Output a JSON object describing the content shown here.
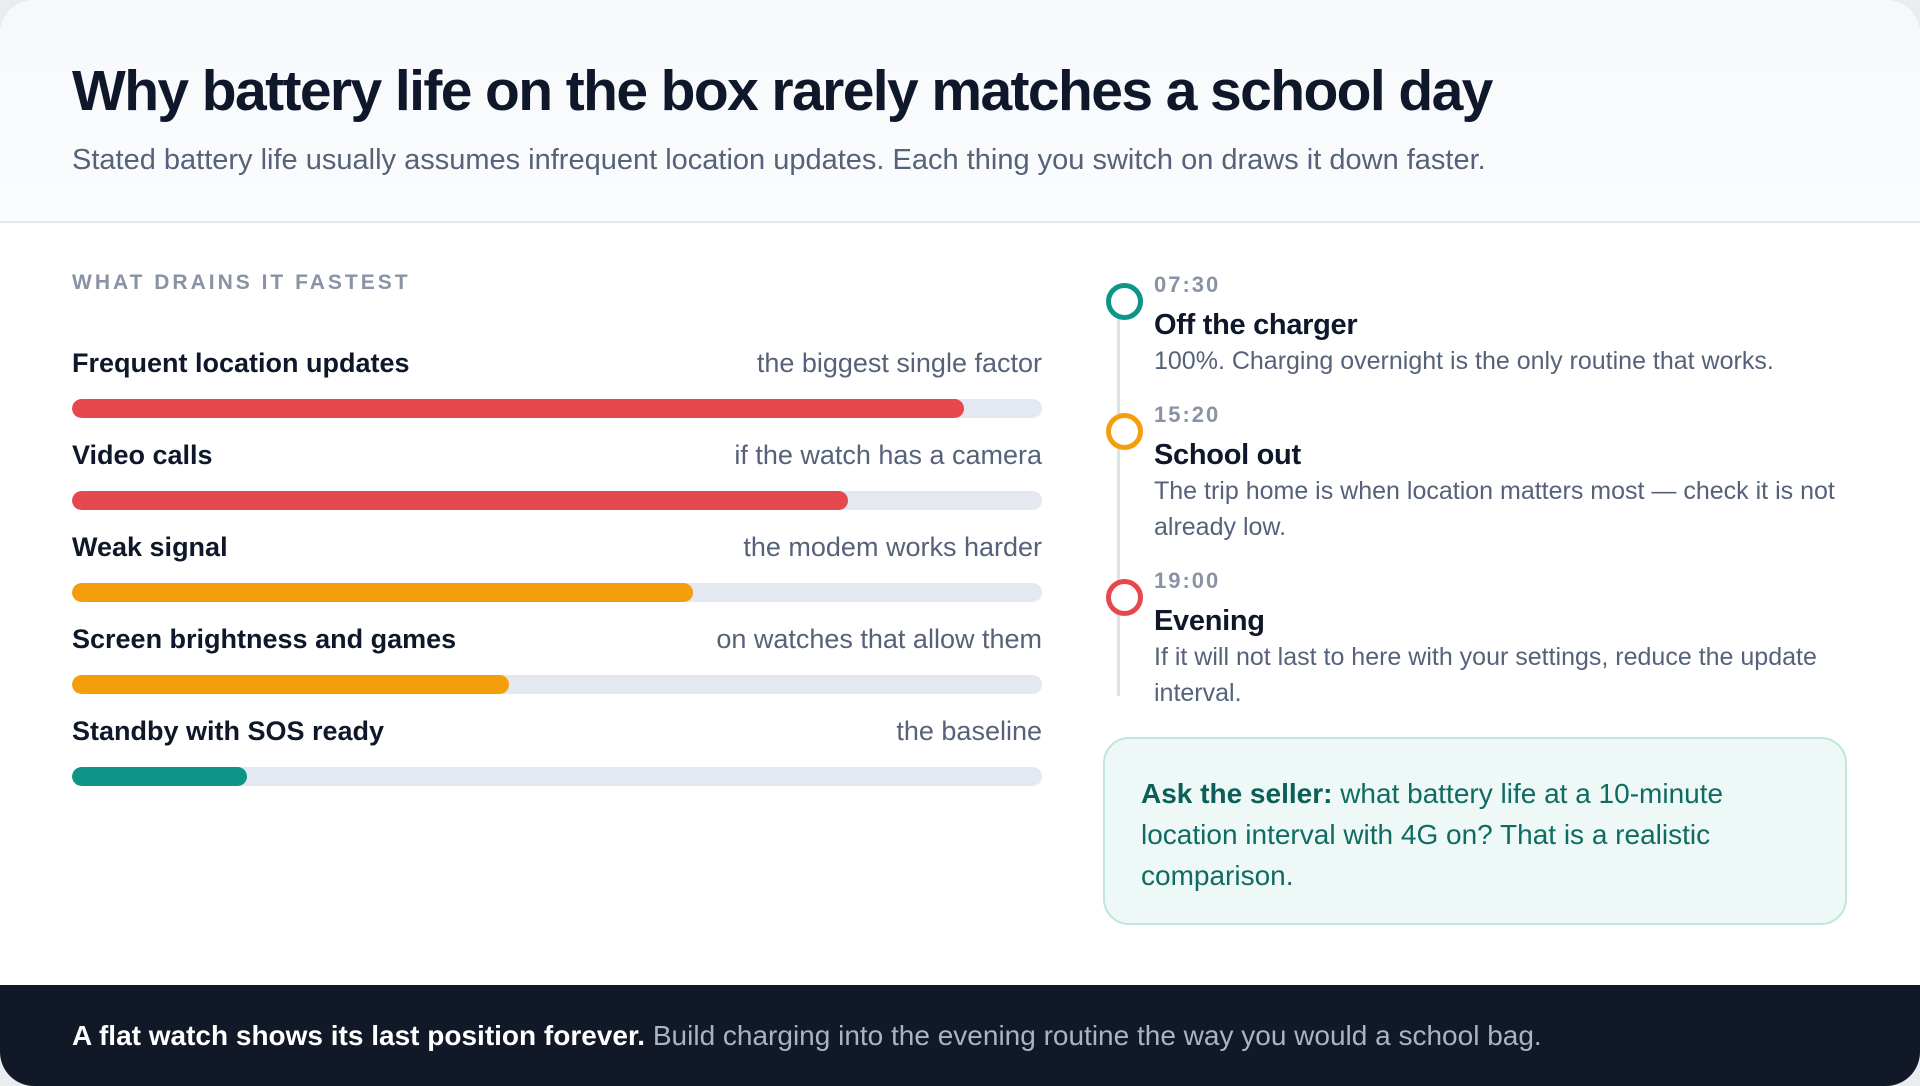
{
  "header": {
    "title": "Why battery life on the box rarely matches a school day",
    "subtitle": "Stated battery life usually assumes infrequent location updates. Each thing you switch on draws it down faster."
  },
  "drains": {
    "label": "WHAT DRAINS IT FASTEST",
    "items": [
      {
        "name": "Frequent location updates",
        "note": "the biggest single factor",
        "level": 0.92,
        "color": "#e5484d"
      },
      {
        "name": "Video calls",
        "note": "if the watch has a camera",
        "level": 0.8,
        "color": "#e5484d"
      },
      {
        "name": "Weak signal",
        "note": "the modem works harder",
        "level": 0.64,
        "color": "#f59e0b"
      },
      {
        "name": "Screen brightness and games",
        "note": "on watches that allow them",
        "level": 0.45,
        "color": "#f59e0b"
      },
      {
        "name": "Standby with SOS ready",
        "note": "the baseline",
        "level": 0.18,
        "color": "#0f9488"
      }
    ]
  },
  "timeline": {
    "items": [
      {
        "time": "07:30",
        "title": "Off the charger",
        "desc": "100%. Charging overnight is the only routine that works.",
        "color": "#0f9488"
      },
      {
        "time": "15:20",
        "title": "School out",
        "desc": "The trip home is when location matters most — check it is not already low.",
        "color": "#f59e0b"
      },
      {
        "time": "19:00",
        "title": "Evening",
        "desc": "If it will not last to here with your settings, reduce the update interval.",
        "color": "#e5484d"
      }
    ]
  },
  "callout": {
    "lead": "Ask the seller:",
    "text": "what battery life at a 10-minute location interval with 4G on? That is a realistic comparison."
  },
  "footer": {
    "strong": "A flat watch shows its last position forever.",
    "text": "Build charging into the evening routine the way you would a school bag."
  }
}
